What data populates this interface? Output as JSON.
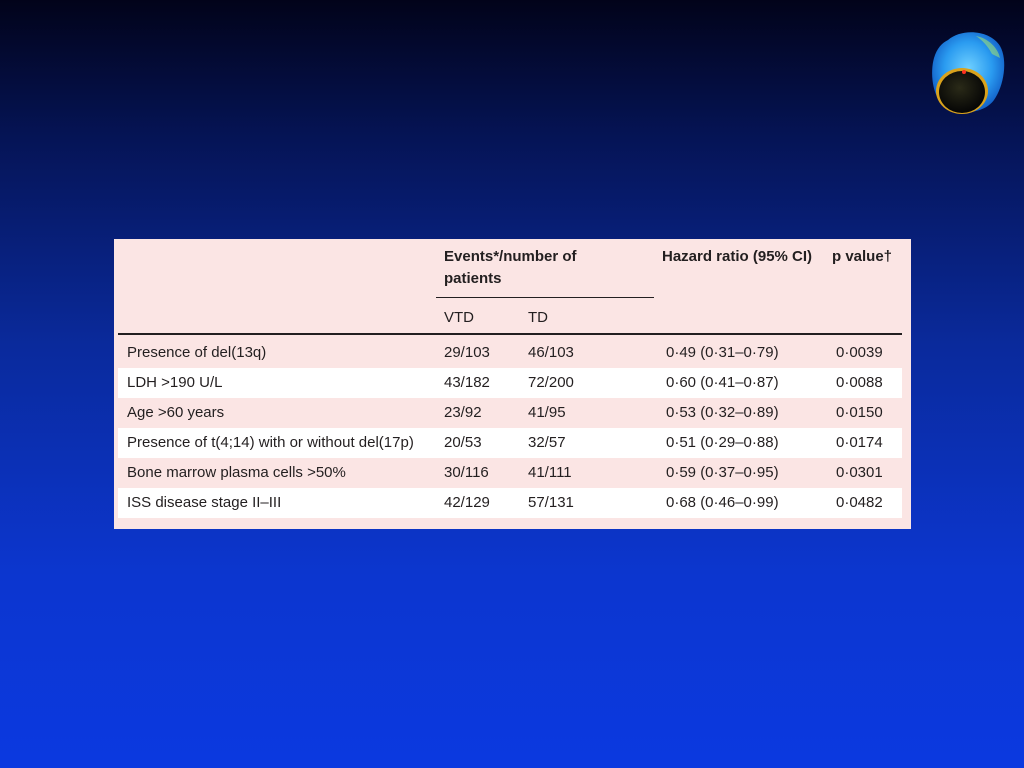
{
  "table": {
    "header": {
      "events": "Events*/number of patients",
      "hazard": "Hazard ratio (95% CI)",
      "pvalue": "p value†",
      "vtd": "VTD",
      "td": "TD"
    },
    "rows": [
      {
        "label": "Presence of del(13q)",
        "vtd": "29/103",
        "td": "46/103",
        "hr": "0·49 (0·31–0·79)",
        "p": "0·0039"
      },
      {
        "label": "LDH >190 U/L",
        "vtd": "43/182",
        "td": "72/200",
        "hr": "0·60 (0·41–0·87)",
        "p": "0·0088"
      },
      {
        "label": "Age >60 years",
        "vtd": "23/92",
        "td": "41/95",
        "hr": "0·53 (0·32–0·89)",
        "p": "0·0150"
      },
      {
        "label": "Presence of t(4;14) with or without del(17p)",
        "vtd": "20/53",
        "td": "32/57",
        "hr": "0·51 (0·29–0·88)",
        "p": "0·0174"
      },
      {
        "label": "Bone marrow plasma cells >50%",
        "vtd": "30/116",
        "td": "41/111",
        "hr": "0·59 (0·37–0·95)",
        "p": "0·0301"
      },
      {
        "label": "ISS disease stage II–III",
        "vtd": "42/129",
        "td": "57/131",
        "hr": "0·68 (0·46–0·99)",
        "p": "0·0482"
      }
    ]
  },
  "colors": {
    "table_bg": "#fbe5e4",
    "row_alt": "#ffffff",
    "text": "#231f20"
  },
  "icons": {
    "corner_image": "cell-micrograph-icon"
  }
}
